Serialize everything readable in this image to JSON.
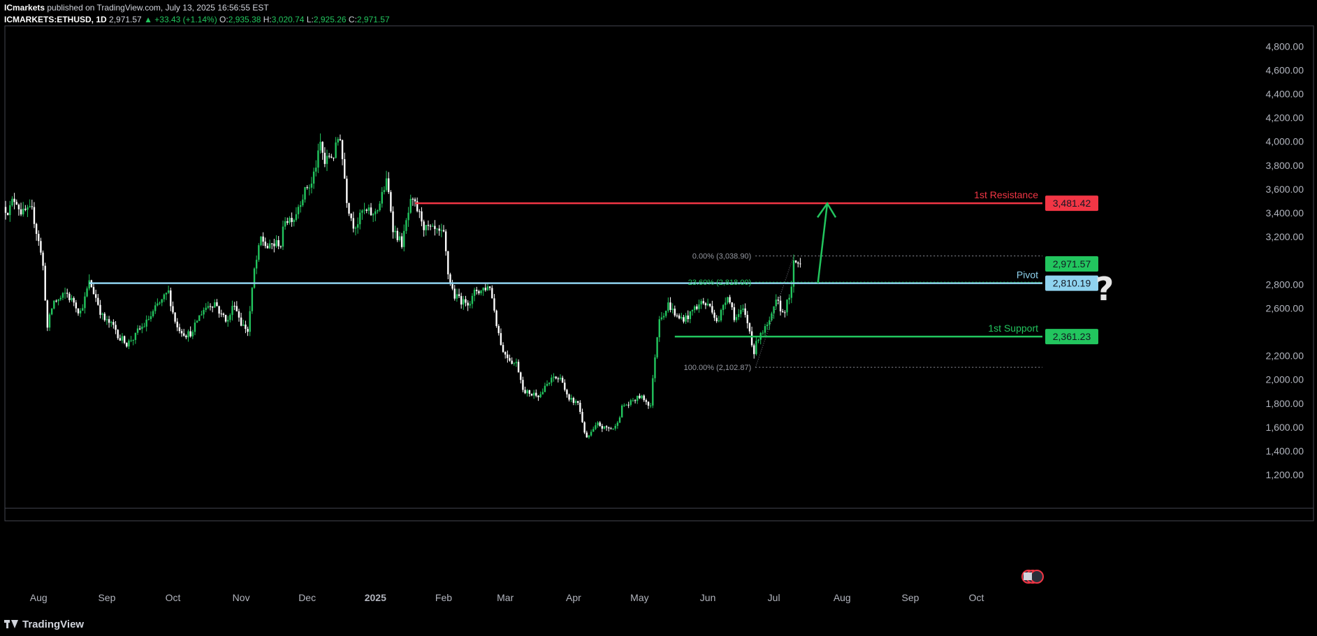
{
  "header": {
    "publisher": "ICmarkets",
    "published_text": "published on TradingView.com, July 13, 2025 16:56:55 EST",
    "symbol": "ICMARKETS:ETHUSD, 1D",
    "last": "2,971.57",
    "change": "▲ +33.43 (+1.14%)",
    "o_label": "O:",
    "o": "2,935.38",
    "h_label": "H:",
    "h": "3,020.74",
    "l_label": "L:",
    "l": "2,925.26",
    "c_label": "C:",
    "c": "2,971.57"
  },
  "footer": {
    "brand": "TradingView"
  },
  "colors": {
    "up": "#22c55e",
    "down": "#ffffff",
    "resistance": "#f23645",
    "pivot": "#8fd3ef",
    "support": "#22c55e",
    "axis_text": "#b2b5be",
    "fib": "#9598a1"
  },
  "chart_data": {
    "type": "candlestick",
    "y_axis": {
      "min": 1100,
      "max": 4950,
      "ticks": [
        "4,800.00",
        "4,600.00",
        "4,400.00",
        "4,200.00",
        "4,000.00",
        "3,800.00",
        "3,600.00",
        "3,400.00",
        "3,200.00",
        "2,800.00",
        "2,600.00",
        "2,200.00",
        "2,000.00",
        "1,800.00",
        "1,600.00",
        "1,400.00",
        "1,200.00"
      ]
    },
    "x_axis": {
      "start": "2024-07-17",
      "end": "2025-10-31",
      "ticks": [
        {
          "date": "2024-08-01",
          "label": "Aug",
          "bold": false
        },
        {
          "date": "2024-09-01",
          "label": "Sep",
          "bold": false
        },
        {
          "date": "2024-10-01",
          "label": "Oct",
          "bold": false
        },
        {
          "date": "2024-11-01",
          "label": "Nov",
          "bold": false
        },
        {
          "date": "2024-12-01",
          "label": "Dec",
          "bold": false
        },
        {
          "date": "2025-01-01",
          "label": "2025",
          "bold": true
        },
        {
          "date": "2025-02-01",
          "label": "Feb",
          "bold": false
        },
        {
          "date": "2025-03-01",
          "label": "Mar",
          "bold": false
        },
        {
          "date": "2025-04-01",
          "label": "Apr",
          "bold": false
        },
        {
          "date": "2025-05-01",
          "label": "May",
          "bold": false
        },
        {
          "date": "2025-06-01",
          "label": "Jun",
          "bold": false
        },
        {
          "date": "2025-07-01",
          "label": "Jul",
          "bold": false
        },
        {
          "date": "2025-08-01",
          "label": "Aug",
          "bold": false
        },
        {
          "date": "2025-09-01",
          "label": "Sep",
          "bold": false
        },
        {
          "date": "2025-10-01",
          "label": "Oct",
          "bold": false
        }
      ]
    },
    "price_path": [
      [
        "2024-07-17",
        3450
      ],
      [
        "2024-07-22",
        3520
      ],
      [
        "2024-07-25",
        3420
      ],
      [
        "2024-07-29",
        3350
      ],
      [
        "2024-08-01",
        3200
      ],
      [
        "2024-08-03",
        2950
      ],
      [
        "2024-08-05",
        2450
      ],
      [
        "2024-08-08",
        2650
      ],
      [
        "2024-08-14",
        2700
      ],
      [
        "2024-08-20",
        2600
      ],
      [
        "2024-08-24",
        2800
      ],
      [
        "2024-08-27",
        2700
      ],
      [
        "2024-08-31",
        2500
      ],
      [
        "2024-09-06",
        2380
      ],
      [
        "2024-09-10",
        2320
      ],
      [
        "2024-09-16",
        2400
      ],
      [
        "2024-09-22",
        2550
      ],
      [
        "2024-09-29",
        2700
      ],
      [
        "2024-10-03",
        2450
      ],
      [
        "2024-10-10",
        2400
      ],
      [
        "2024-10-15",
        2600
      ],
      [
        "2024-10-20",
        2680
      ],
      [
        "2024-10-23",
        2550
      ],
      [
        "2024-10-26",
        2500
      ],
      [
        "2024-10-29",
        2650
      ],
      [
        "2024-11-01",
        2500
      ],
      [
        "2024-11-04",
        2420
      ],
      [
        "2024-11-07",
        2900
      ],
      [
        "2024-11-10",
        3150
      ],
      [
        "2024-11-14",
        3100
      ],
      [
        "2024-11-19",
        3150
      ],
      [
        "2024-11-21",
        3350
      ],
      [
        "2024-11-25",
        3400
      ],
      [
        "2024-11-29",
        3600
      ],
      [
        "2024-12-03",
        3650
      ],
      [
        "2024-12-07",
        3950
      ],
      [
        "2024-12-09",
        3800
      ],
      [
        "2024-12-13",
        3900
      ],
      [
        "2024-12-16",
        4050
      ],
      [
        "2024-12-19",
        3550
      ],
      [
        "2024-12-22",
        3350
      ],
      [
        "2024-12-26",
        3400
      ],
      [
        "2024-12-31",
        3350
      ],
      [
        "2025-01-06",
        3650
      ],
      [
        "2025-01-09",
        3300
      ],
      [
        "2025-01-13",
        3150
      ],
      [
        "2025-01-17",
        3450
      ],
      [
        "2025-01-23",
        3300
      ],
      [
        "2025-01-27",
        3200
      ],
      [
        "2025-02-01",
        3150
      ],
      [
        "2025-02-03",
        2850
      ],
      [
        "2025-02-06",
        2700
      ],
      [
        "2025-02-10",
        2650
      ],
      [
        "2025-02-17",
        2750
      ],
      [
        "2025-02-22",
        2800
      ],
      [
        "2025-02-25",
        2500
      ],
      [
        "2025-02-28",
        2250
      ],
      [
        "2025-03-03",
        2200
      ],
      [
        "2025-03-06",
        2150
      ],
      [
        "2025-03-10",
        1900
      ],
      [
        "2025-03-13",
        1880
      ],
      [
        "2025-03-17",
        1900
      ],
      [
        "2025-03-23",
        2000
      ],
      [
        "2025-03-27",
        2000
      ],
      [
        "2025-03-30",
        1800
      ],
      [
        "2025-04-03",
        1800
      ],
      [
        "2025-04-07",
        1500
      ],
      [
        "2025-04-12",
        1600
      ],
      [
        "2025-04-17",
        1580
      ],
      [
        "2025-04-20",
        1600
      ],
      [
        "2025-04-23",
        1780
      ],
      [
        "2025-04-27",
        1800
      ],
      [
        "2025-05-01",
        1850
      ],
      [
        "2025-05-06",
        1800
      ],
      [
        "2025-05-08",
        2200
      ],
      [
        "2025-05-10",
        2550
      ],
      [
        "2025-05-14",
        2650
      ],
      [
        "2025-05-19",
        2500
      ],
      [
        "2025-05-24",
        2550
      ],
      [
        "2025-05-29",
        2650
      ],
      [
        "2025-06-03",
        2600
      ],
      [
        "2025-06-06",
        2500
      ],
      [
        "2025-06-10",
        2750
      ],
      [
        "2025-06-13",
        2550
      ],
      [
        "2025-06-17",
        2550
      ],
      [
        "2025-06-20",
        2400
      ],
      [
        "2025-06-22",
        2250
      ],
      [
        "2025-06-25",
        2420
      ],
      [
        "2025-06-29",
        2450
      ],
      [
        "2025-07-02",
        2600
      ],
      [
        "2025-07-05",
        2550
      ],
      [
        "2025-07-09",
        2750
      ],
      [
        "2025-07-10",
        2950
      ],
      [
        "2025-07-13",
        2971.57
      ]
    ],
    "horizontal_levels": [
      {
        "name": "1st Resistance",
        "value": 3481.42,
        "label": "3,481.42",
        "from": "2025-01-19",
        "color": "#f23645"
      },
      {
        "name": "Pivot",
        "value": 2810.19,
        "label": "2,810.19",
        "from": "2024-08-24",
        "color": "#8fd3ef"
      },
      {
        "name": "1st Support",
        "value": 2361.23,
        "label": "2,361.23",
        "from": "2025-05-17",
        "color": "#22c55e"
      }
    ],
    "last_price": {
      "value": 2971.57,
      "label": "2,971.57"
    },
    "fibonacci": {
      "from": "2025-06-22",
      "to": "2025-07-10",
      "levels": [
        {
          "label": "0.00% (3,038.90)",
          "value": 3038.9
        },
        {
          "label": "23.60% (2,818.00)",
          "value": 2818.0
        },
        {
          "label": "100.00% (2,102.87)",
          "value": 2102.87
        }
      ]
    },
    "projection_arrow": {
      "from_date": "2025-07-21",
      "from_value": 2810,
      "to_date": "2025-07-24",
      "to_value": 3480
    },
    "annotation": "?"
  }
}
